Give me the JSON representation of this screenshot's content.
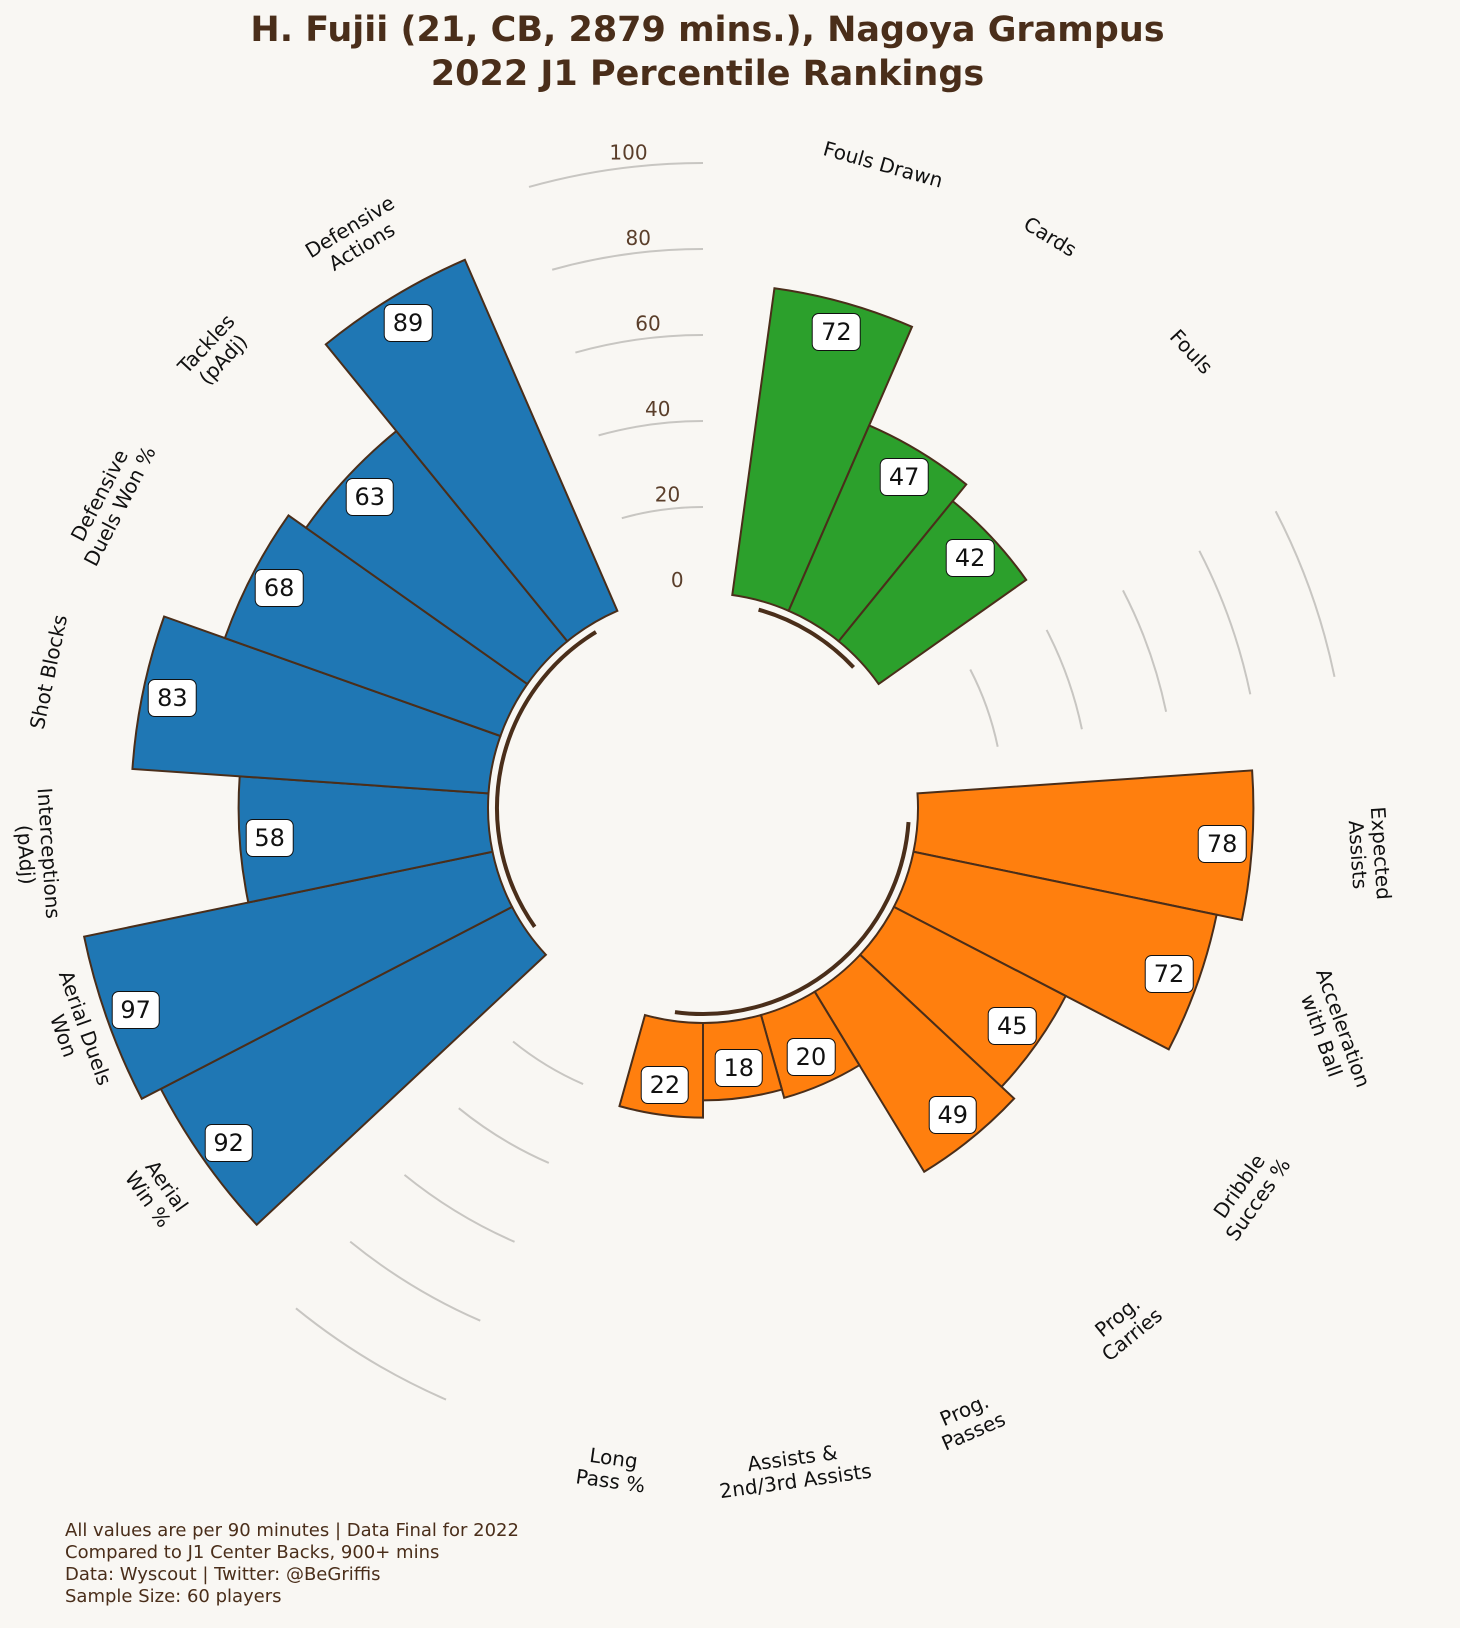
{
  "chart_data": {
    "type": "polar_bar",
    "title": "H. Fujii (21, CB, 2879 mins.), Nagoya Grampus\n2022 J1 Percentile Rankings",
    "categories": [
      null,
      "Fouls Drawn",
      "Cards",
      "Fouls",
      null,
      null,
      "Expected\nAssists",
      "Acceleration\nwith Ball",
      "Dribble\nSucces %",
      "Prog.\nCarries",
      "Prog.\nPasses",
      "Assists &\n2nd/3rd Assists",
      "Long\nPass %",
      null,
      null,
      "Aerial\nWin %",
      "Aerial Duels\nWon",
      "Interceptions\n(pAdj)",
      "Shot Blocks",
      "Defensive\nDuels Won %",
      "Tackles\n(pAdj)",
      "Defensive\nActions",
      null
    ],
    "values": [
      null,
      72,
      47,
      42,
      null,
      null,
      78,
      72,
      45,
      49,
      20,
      18,
      22,
      null,
      null,
      92,
      97,
      58,
      83,
      68,
      63,
      89,
      null
    ],
    "colors": [
      null,
      "#2ca02c",
      "#2ca02c",
      "#2ca02c",
      null,
      null,
      "#ff7f0e",
      "#ff7f0e",
      "#ff7f0e",
      "#ff7f0e",
      "#ff7f0e",
      "#ff7f0e",
      "#ff7f0e",
      null,
      null,
      "#1f77b4",
      "#1f77b4",
      "#1f77b4",
      "#1f77b4",
      "#1f77b4",
      "#1f77b4",
      "#1f77b4",
      null
    ],
    "ylim": [
      0,
      100
    ],
    "yticks": [
      0,
      20,
      40,
      60,
      80,
      100
    ],
    "notes": [
      "All values are per 90 minutes | Data Final for 2022",
      "Compared to J1 Center Backs, 900+ mins",
      "Data: Wyscout | Twitter: @BeGriffis",
      "Sample Size: 60 players"
    ]
  }
}
